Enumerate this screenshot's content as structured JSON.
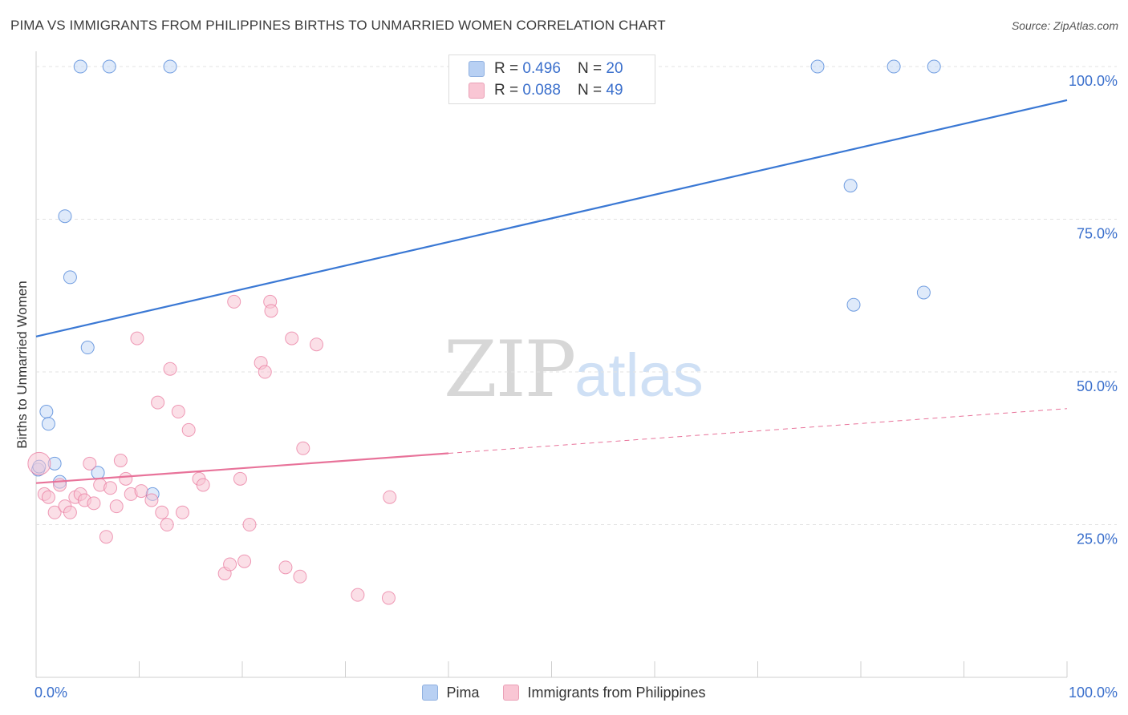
{
  "title": "PIMA VS IMMIGRANTS FROM PHILIPPINES BIRTHS TO UNMARRIED WOMEN CORRELATION CHART",
  "source": "Source: ZipAtlas.com",
  "watermark": {
    "zip": "ZIP",
    "atlas": "atlas"
  },
  "stats": {
    "pima": {
      "r_label": "R = ",
      "r_value": "0.496",
      "n_label": "N = ",
      "n_value": "20"
    },
    "philippines": {
      "r_label": "R = ",
      "r_value": "0.088",
      "n_label": "N = ",
      "n_value": "49"
    }
  },
  "legend": {
    "pima": "Pima",
    "philippines": "Immigrants from Philippines"
  },
  "colors": {
    "blue": "#3a78d4",
    "blue_fill": "#c5d8f5",
    "pink": "#e8739a",
    "pink_fill": "#f7c4d3",
    "tick_label": "#3a6fcc"
  },
  "chart_data": {
    "type": "scatter",
    "title": "PIMA VS IMMIGRANTS FROM PHILIPPINES BIRTHS TO UNMARRIED WOMEN CORRELATION CHART",
    "xlabel": "",
    "ylabel": "Births to Unmarried Women",
    "xlim": [
      0,
      100
    ],
    "ylim": [
      0,
      102.5
    ],
    "x_tick_labels": [
      "0.0%",
      "100.0%"
    ],
    "y_ticks": [
      25,
      50,
      75,
      100
    ],
    "y_tick_labels": [
      "25.0%",
      "50.0%",
      "75.0%",
      "100.0%"
    ],
    "grid": true,
    "legend_position": "bottom",
    "series": [
      {
        "name": "Pima",
        "points": [
          [
            0.2,
            34.0
          ],
          [
            1.0,
            43.5
          ],
          [
            1.2,
            41.5
          ],
          [
            1.8,
            35.0
          ],
          [
            2.3,
            32.0
          ],
          [
            2.8,
            75.5
          ],
          [
            3.3,
            65.5
          ],
          [
            4.3,
            100
          ],
          [
            5.0,
            54.0
          ],
          [
            6.0,
            33.5
          ],
          [
            7.1,
            100
          ],
          [
            11.3,
            30.0
          ],
          [
            13.0,
            100
          ],
          [
            75.8,
            100
          ],
          [
            79.0,
            80.5
          ],
          [
            79.3,
            61.0
          ],
          [
            83.2,
            100
          ],
          [
            86.1,
            63.0
          ],
          [
            87.1,
            100
          ],
          [
            0.3,
            34.5
          ]
        ],
        "trend": {
          "x": [
            0,
            100
          ],
          "y": [
            55.8,
            94.5
          ],
          "dashed_from": null
        }
      },
      {
        "name": "Immigrants from Philippines",
        "points": [
          [
            0.3,
            35.0
          ],
          [
            0.8,
            30.0
          ],
          [
            1.2,
            29.5
          ],
          [
            1.8,
            27.0
          ],
          [
            2.3,
            31.5
          ],
          [
            2.8,
            28.0
          ],
          [
            3.3,
            27.0
          ],
          [
            3.8,
            29.5
          ],
          [
            4.3,
            30.0
          ],
          [
            4.7,
            29.0
          ],
          [
            5.2,
            35.0
          ],
          [
            5.6,
            28.5
          ],
          [
            6.2,
            31.5
          ],
          [
            6.8,
            23.0
          ],
          [
            7.2,
            31.0
          ],
          [
            7.8,
            28.0
          ],
          [
            8.2,
            35.5
          ],
          [
            8.7,
            32.5
          ],
          [
            9.2,
            30.0
          ],
          [
            9.8,
            55.5
          ],
          [
            10.2,
            30.5
          ],
          [
            11.2,
            29.0
          ],
          [
            11.8,
            45.0
          ],
          [
            12.2,
            27.0
          ],
          [
            12.7,
            25.0
          ],
          [
            13.0,
            50.5
          ],
          [
            13.8,
            43.5
          ],
          [
            14.2,
            27.0
          ],
          [
            14.8,
            40.5
          ],
          [
            15.8,
            32.5
          ],
          [
            16.2,
            31.5
          ],
          [
            18.3,
            17.0
          ],
          [
            18.8,
            18.5
          ],
          [
            19.2,
            61.5
          ],
          [
            19.8,
            32.5
          ],
          [
            20.2,
            19.0
          ],
          [
            20.7,
            25.0
          ],
          [
            21.8,
            51.5
          ],
          [
            22.2,
            50.0
          ],
          [
            22.7,
            61.5
          ],
          [
            22.8,
            60.0
          ],
          [
            24.2,
            18.0
          ],
          [
            24.8,
            55.5
          ],
          [
            25.6,
            16.5
          ],
          [
            25.9,
            37.5
          ],
          [
            27.2,
            54.5
          ],
          [
            31.2,
            13.5
          ],
          [
            34.2,
            13.0
          ],
          [
            34.3,
            29.5
          ]
        ],
        "trend": {
          "x": [
            0,
            100
          ],
          "y": [
            31.8,
            44.0
          ],
          "dashed_from": 40
        }
      }
    ]
  }
}
